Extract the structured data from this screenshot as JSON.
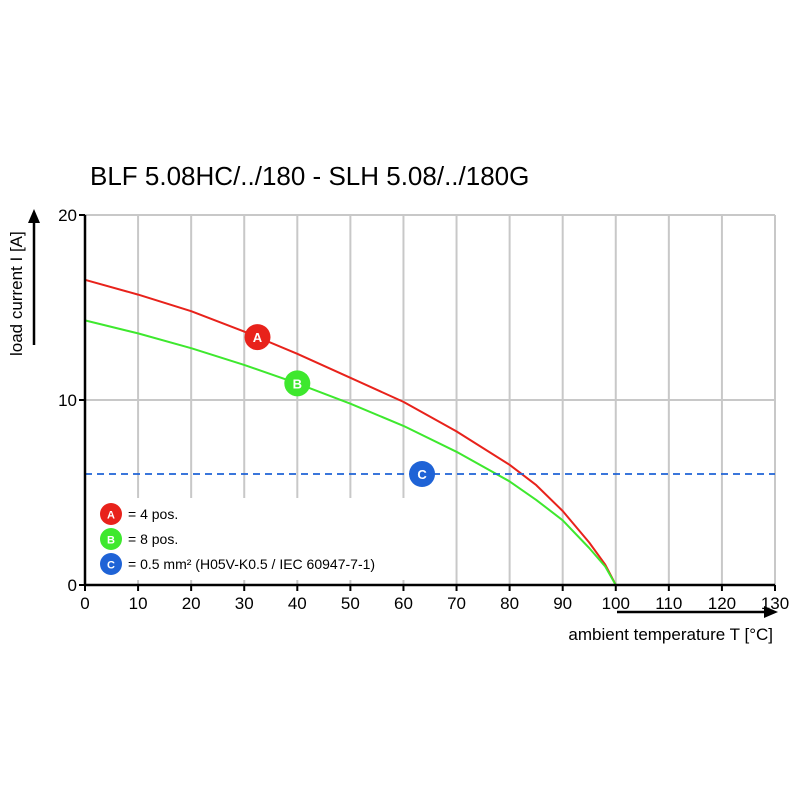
{
  "chart_data": {
    "type": "line",
    "title": "BLF 5.08HC/../180 - SLH 5.08/../180G",
    "xlabel": "ambient temperature T [°C]",
    "ylabel": "load current I [A]",
    "xlim": [
      0,
      130
    ],
    "ylim": [
      0,
      20
    ],
    "x_ticks": [
      "0",
      "10",
      "20",
      "30",
      "40",
      "50",
      "60",
      "70",
      "80",
      "90",
      "100",
      "110",
      "120",
      "130"
    ],
    "y_ticks": [
      "0",
      "10",
      "20"
    ],
    "grid": true,
    "series": [
      {
        "name": "A",
        "label": "= 4 pos.",
        "color": "#e8221b",
        "x": [
          0,
          10,
          20,
          30,
          40,
          50,
          60,
          70,
          80,
          85,
          90,
          95,
          98,
          100
        ],
        "y": [
          16.5,
          15.7,
          14.8,
          13.7,
          12.5,
          11.2,
          9.9,
          8.3,
          6.5,
          5.4,
          4.0,
          2.3,
          1.1,
          0
        ]
      },
      {
        "name": "B",
        "label": "= 8 pos.",
        "color": "#3ee82e",
        "x": [
          0,
          10,
          20,
          30,
          40,
          50,
          60,
          70,
          80,
          85,
          90,
          95,
          98,
          100
        ],
        "y": [
          14.3,
          13.6,
          12.8,
          11.9,
          10.9,
          9.8,
          8.6,
          7.2,
          5.6,
          4.6,
          3.5,
          2.0,
          1.0,
          0
        ]
      },
      {
        "name": "C",
        "label": "= 0.5 mm² (H05V-K0.5 / IEC 60947-7-1)",
        "color": "#1f63d6",
        "style": "dashed",
        "x": [
          0,
          130
        ],
        "y": [
          6,
          6
        ]
      }
    ],
    "markers": [
      {
        "name": "A",
        "x": 32.5,
        "y": 13.4,
        "color": "#e8221b"
      },
      {
        "name": "B",
        "x": 40,
        "y": 10.9,
        "color": "#3ee82e"
      },
      {
        "name": "C",
        "x": 63.5,
        "y": 6,
        "color": "#1f63d6"
      }
    ]
  }
}
